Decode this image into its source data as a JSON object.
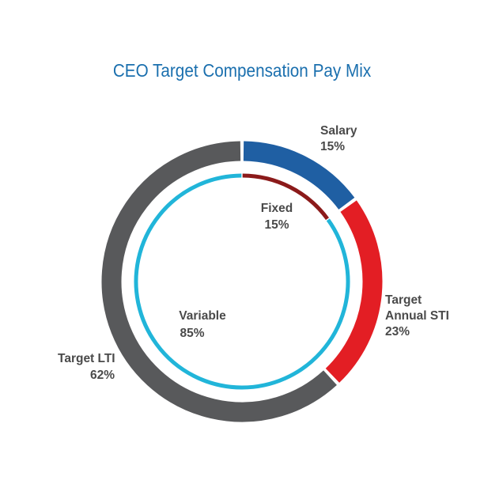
{
  "chart_data": {
    "type": "donut",
    "title": "CEO Target Compensation Pay Mix",
    "outer": [
      {
        "name": "Salary",
        "value": 15,
        "label": "15%",
        "color": "#1f5fa3"
      },
      {
        "name": "Target Annual STI",
        "value": 23,
        "label": "23%",
        "color": "#e31e24"
      },
      {
        "name": "Target LTI",
        "value": 62,
        "label": "62%",
        "color": "#58595b"
      }
    ],
    "inner": [
      {
        "name": "Fixed",
        "value": 15,
        "label": "15%",
        "color": "#8b1a1a"
      },
      {
        "name": "Variable",
        "value": 85,
        "label": "85%",
        "color": "#21b5d9"
      }
    ]
  },
  "labels": {
    "salary_name": "Salary",
    "salary_value": "15%",
    "sti_name_1": "Target",
    "sti_name_2": "Annual STI",
    "sti_value": "23%",
    "lti_name": "Target LTI",
    "lti_value": "62%",
    "fixed_name": "Fixed",
    "fixed_value": "15%",
    "variable_name": "Variable",
    "variable_value": "85%"
  }
}
